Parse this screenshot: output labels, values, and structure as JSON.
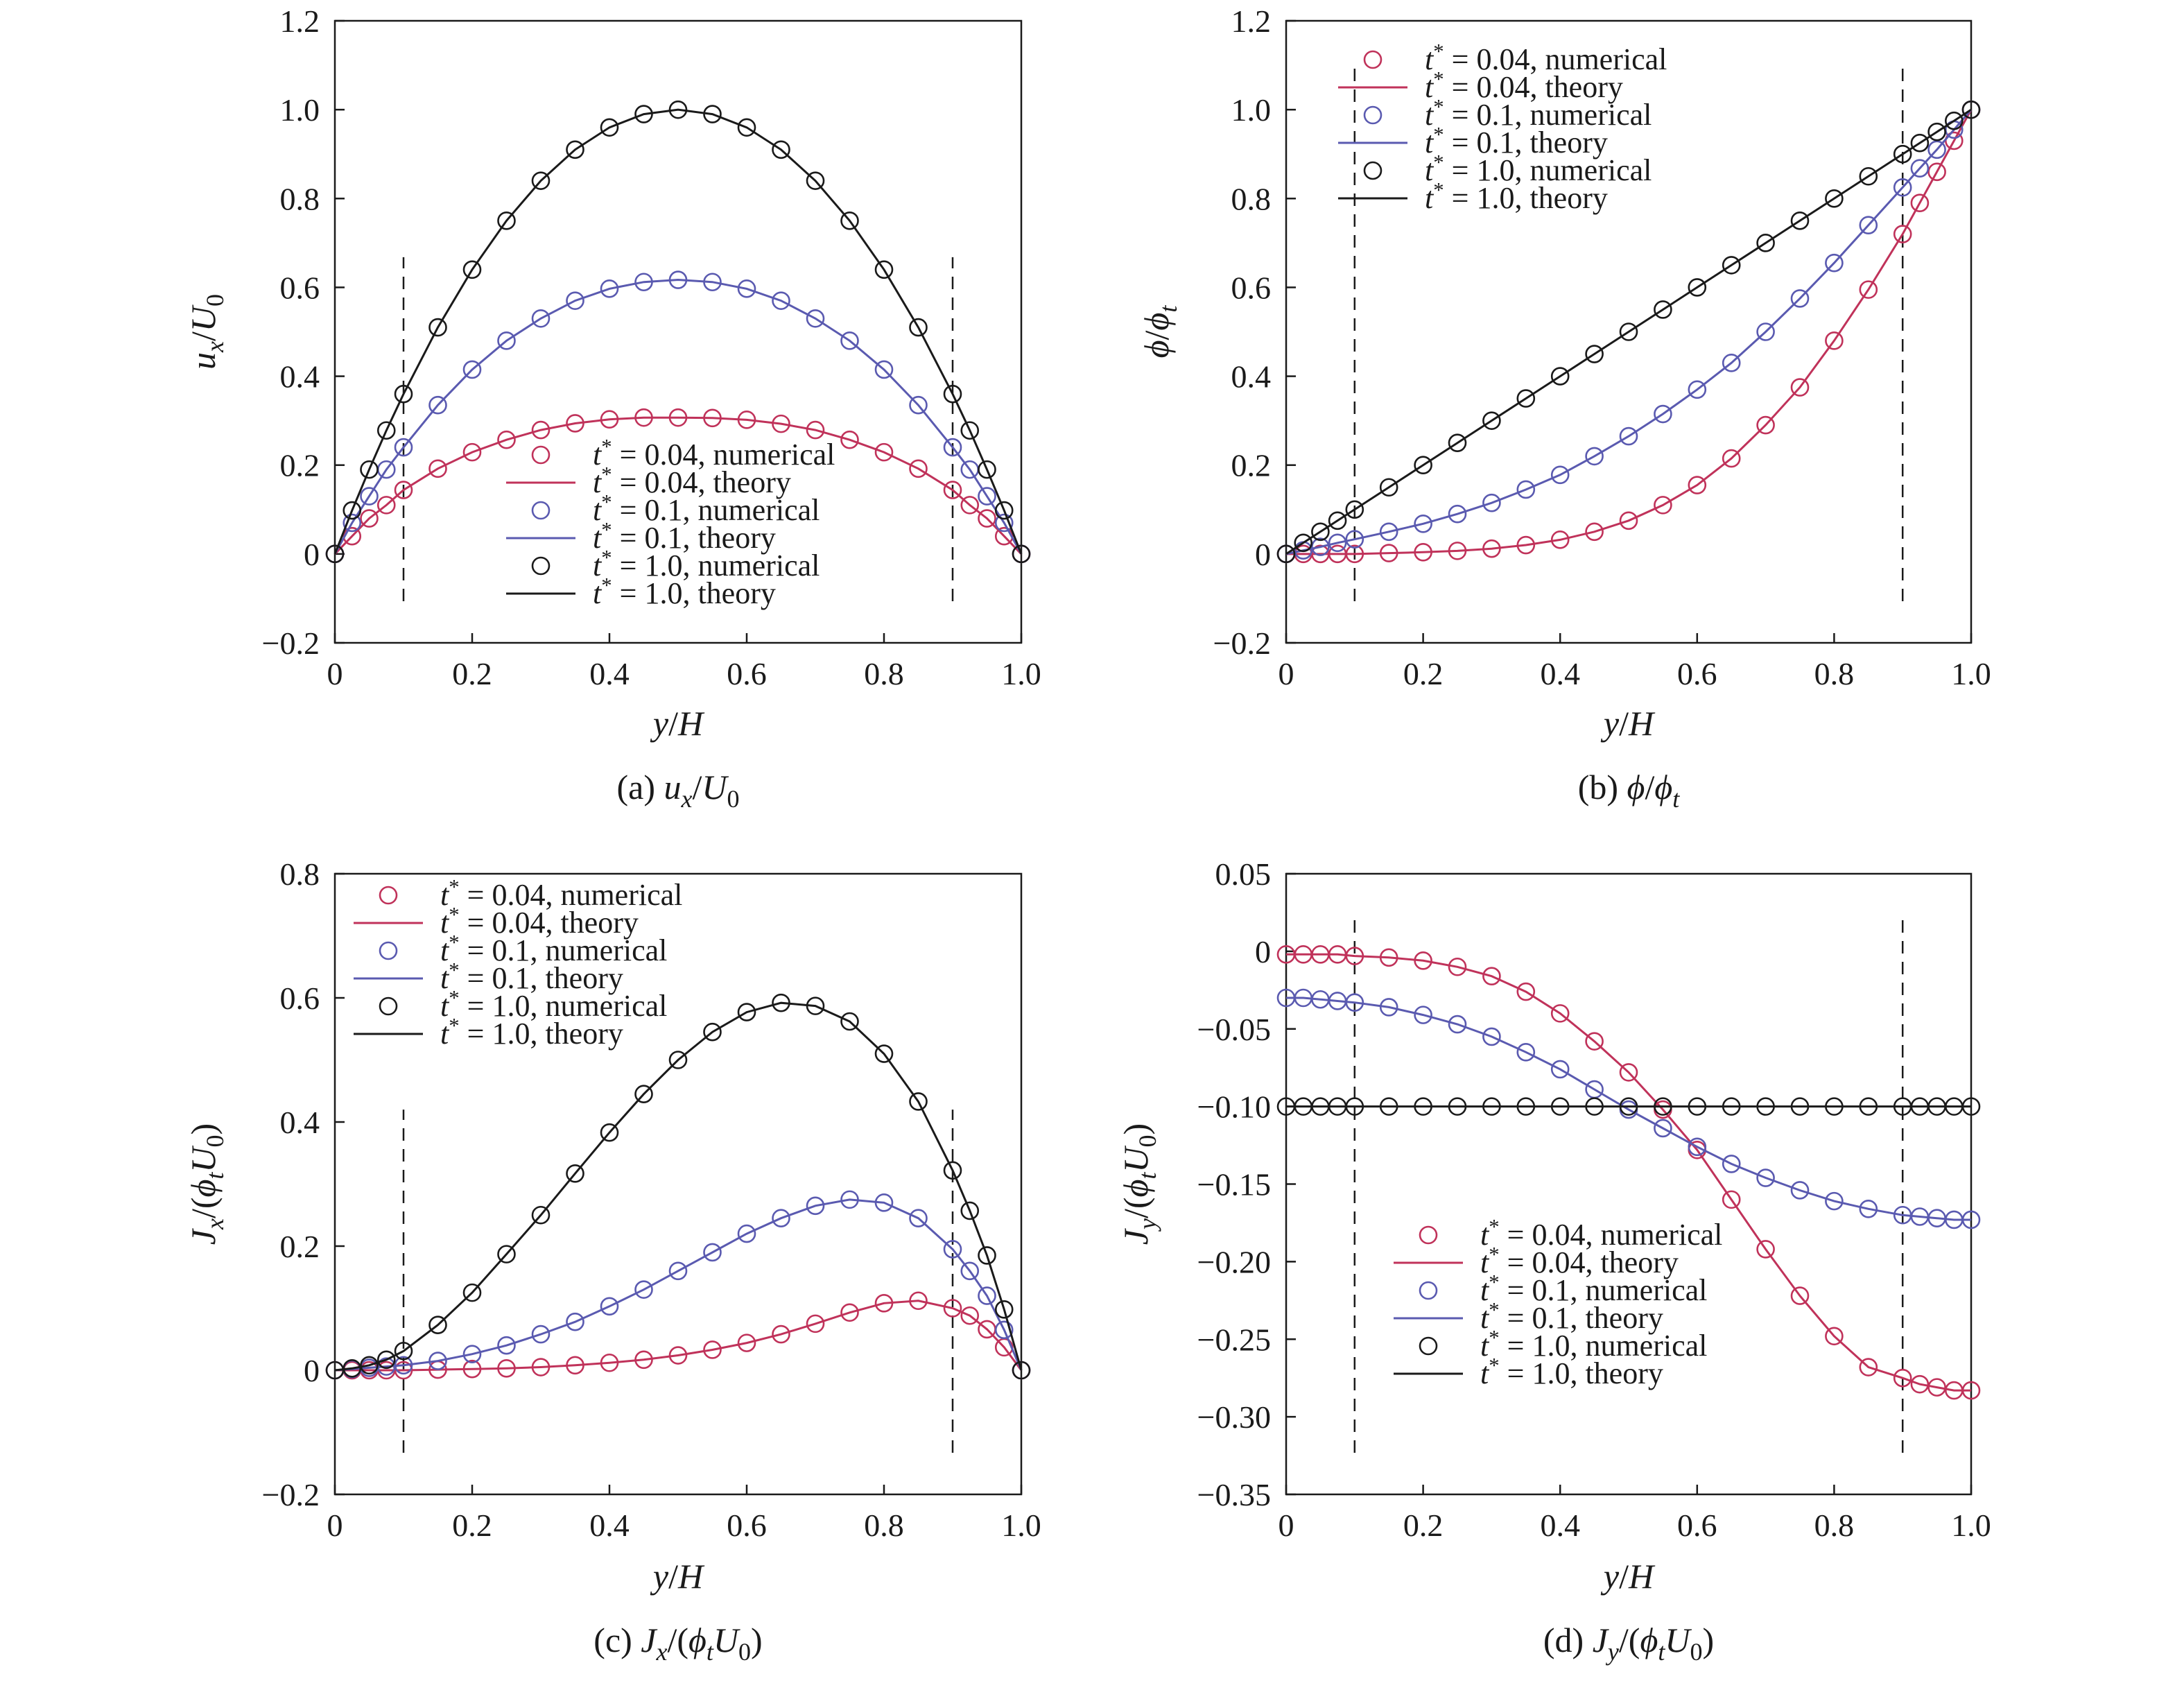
{
  "colors": {
    "t004": "#c0325a",
    "t01": "#5a5ab0",
    "t10": "#1a1a1a"
  },
  "legend_entries": [
    {
      "key": "t004",
      "kind": "marker",
      "pre": "t",
      "sup": "*",
      "post": " = 0.04, numerical"
    },
    {
      "key": "t004",
      "kind": "line",
      "pre": "t",
      "sup": "*",
      "post": " = 0.04, theory"
    },
    {
      "key": "t01",
      "kind": "marker",
      "pre": "t",
      "sup": "*",
      "post": " = 0.1, numerical"
    },
    {
      "key": "t01",
      "kind": "line",
      "pre": "t",
      "sup": "*",
      "post": " = 0.1, theory"
    },
    {
      "key": "t10",
      "kind": "marker",
      "pre": "t",
      "sup": "*",
      "post": " = 1.0, numerical"
    },
    {
      "key": "t10",
      "kind": "line",
      "pre": "t",
      "sup": "*",
      "post": " = 1.0, theory"
    }
  ],
  "chart_data": [
    {
      "id": "a",
      "type": "line",
      "caption": [
        {
          "t": "(a) "
        },
        {
          "t": "u",
          "i": true
        },
        {
          "t": "x",
          "i": true,
          "sub": true
        },
        {
          "t": "/"
        },
        {
          "t": "U",
          "i": true
        },
        {
          "t": "0",
          "sub": true
        }
      ],
      "ylabel": [
        {
          "t": "u",
          "i": true
        },
        {
          "t": "x",
          "i": true,
          "sub": true
        },
        {
          "t": "/"
        },
        {
          "t": "U",
          "i": true
        },
        {
          "t": "0",
          "sub": true
        }
      ],
      "xlabel": [
        {
          "t": "y",
          "i": true
        },
        {
          "t": "/"
        },
        {
          "t": "H",
          "i": true
        }
      ],
      "xlim": [
        0,
        1
      ],
      "ylim": [
        -0.2,
        1.2
      ],
      "xticks": [
        0,
        0.2,
        0.4,
        0.6,
        0.8,
        1.0
      ],
      "xtick_labels": [
        "0",
        "0.2",
        "0.4",
        "0.6",
        "0.8",
        "1.0"
      ],
      "yticks": [
        -0.2,
        0,
        0.2,
        0.4,
        0.6,
        0.8,
        1.0,
        1.2
      ],
      "ytick_labels": [
        "−0.2",
        "0",
        "0.2",
        "0.4",
        "0.6",
        "0.8",
        "1.0",
        "1.2"
      ],
      "dashed_x": [
        0.1,
        0.9
      ],
      "legend_position": "bottom-center",
      "x": [
        0,
        0.025,
        0.05,
        0.075,
        0.1,
        0.15,
        0.2,
        0.25,
        0.3,
        0.35,
        0.4,
        0.45,
        0.5,
        0.55,
        0.6,
        0.65,
        0.7,
        0.75,
        0.8,
        0.85,
        0.9,
        0.925,
        0.95,
        0.975,
        1.0
      ],
      "series": [
        {
          "key": "t004",
          "values": [
            0,
            0.04,
            0.08,
            0.11,
            0.144,
            0.192,
            0.229,
            0.257,
            0.279,
            0.294,
            0.303,
            0.307,
            0.307,
            0.306,
            0.302,
            0.293,
            0.279,
            0.257,
            0.229,
            0.192,
            0.144,
            0.11,
            0.08,
            0.04,
            0
          ]
        },
        {
          "key": "t01",
          "values": [
            0,
            0.07,
            0.13,
            0.19,
            0.24,
            0.335,
            0.415,
            0.48,
            0.53,
            0.57,
            0.597,
            0.612,
            0.617,
            0.612,
            0.597,
            0.57,
            0.53,
            0.48,
            0.415,
            0.335,
            0.24,
            0.19,
            0.13,
            0.07,
            0
          ]
        },
        {
          "key": "t10",
          "values": [
            0,
            0.098,
            0.19,
            0.278,
            0.36,
            0.51,
            0.64,
            0.75,
            0.84,
            0.91,
            0.96,
            0.99,
            1.0,
            0.99,
            0.96,
            0.91,
            0.84,
            0.75,
            0.64,
            0.51,
            0.36,
            0.278,
            0.19,
            0.098,
            0
          ]
        }
      ]
    },
    {
      "id": "b",
      "type": "line",
      "caption": [
        {
          "t": "(b) "
        },
        {
          "t": "ϕ",
          "i": true
        },
        {
          "t": "/"
        },
        {
          "t": "ϕ",
          "i": true
        },
        {
          "t": "t",
          "i": true,
          "sub": true
        }
      ],
      "ylabel": [
        {
          "t": "ϕ",
          "i": true
        },
        {
          "t": "/"
        },
        {
          "t": "ϕ",
          "i": true
        },
        {
          "t": "t",
          "i": true,
          "sub": true
        }
      ],
      "xlabel": [
        {
          "t": "y",
          "i": true
        },
        {
          "t": "/"
        },
        {
          "t": "H",
          "i": true
        }
      ],
      "xlim": [
        0,
        1
      ],
      "ylim": [
        -0.2,
        1.2
      ],
      "xticks": [
        0,
        0.2,
        0.4,
        0.6,
        0.8,
        1.0
      ],
      "xtick_labels": [
        "0",
        "0.2",
        "0.4",
        "0.6",
        "0.8",
        "1.0"
      ],
      "yticks": [
        -0.2,
        0,
        0.2,
        0.4,
        0.6,
        0.8,
        1.0,
        1.2
      ],
      "ytick_labels": [
        "−0.2",
        "0",
        "0.2",
        "0.4",
        "0.6",
        "0.8",
        "1.0",
        "1.2"
      ],
      "dashed_x": [
        0.1,
        0.9
      ],
      "legend_position": "top-left",
      "x": [
        0,
        0.025,
        0.05,
        0.075,
        0.1,
        0.15,
        0.2,
        0.25,
        0.3,
        0.35,
        0.4,
        0.45,
        0.5,
        0.55,
        0.6,
        0.65,
        0.7,
        0.75,
        0.8,
        0.85,
        0.9,
        0.925,
        0.95,
        0.975,
        1.0
      ],
      "series": [
        {
          "key": "t004",
          "values": [
            0,
            0,
            0,
            0,
            0,
            0.002,
            0.004,
            0.007,
            0.012,
            0.02,
            0.032,
            0.05,
            0.075,
            0.11,
            0.155,
            0.215,
            0.29,
            0.375,
            0.48,
            0.595,
            0.72,
            0.79,
            0.86,
            0.93,
            1.0
          ]
        },
        {
          "key": "t01",
          "values": [
            0,
            0.008,
            0.016,
            0.025,
            0.033,
            0.05,
            0.068,
            0.09,
            0.115,
            0.145,
            0.178,
            0.22,
            0.265,
            0.315,
            0.37,
            0.43,
            0.5,
            0.575,
            0.655,
            0.74,
            0.825,
            0.868,
            0.91,
            0.955,
            1.0
          ]
        },
        {
          "key": "t10",
          "values": [
            0,
            0.025,
            0.05,
            0.075,
            0.1,
            0.15,
            0.2,
            0.25,
            0.3,
            0.35,
            0.4,
            0.45,
            0.5,
            0.55,
            0.6,
            0.65,
            0.7,
            0.75,
            0.8,
            0.85,
            0.9,
            0.925,
            0.95,
            0.975,
            1.0
          ]
        }
      ]
    },
    {
      "id": "c",
      "type": "line",
      "caption": [
        {
          "t": "(c) "
        },
        {
          "t": "J",
          "i": true
        },
        {
          "t": "x",
          "i": true,
          "sub": true
        },
        {
          "t": "/("
        },
        {
          "t": "ϕ",
          "i": true
        },
        {
          "t": "t",
          "i": true,
          "sub": true
        },
        {
          "t": "U",
          "i": true
        },
        {
          "t": "0",
          "sub": true
        },
        {
          "t": ")"
        }
      ],
      "ylabel": [
        {
          "t": "J",
          "i": true
        },
        {
          "t": "x",
          "i": true,
          "sub": true
        },
        {
          "t": "/("
        },
        {
          "t": "ϕ",
          "i": true
        },
        {
          "t": "t",
          "i": true,
          "sub": true
        },
        {
          "t": "U",
          "i": true
        },
        {
          "t": "0",
          "sub": true
        },
        {
          "t": ")"
        }
      ],
      "xlabel": [
        {
          "t": "y",
          "i": true
        },
        {
          "t": "/"
        },
        {
          "t": "H",
          "i": true
        }
      ],
      "xlim": [
        0,
        1
      ],
      "ylim": [
        -0.2,
        0.8
      ],
      "xticks": [
        0,
        0.2,
        0.4,
        0.6,
        0.8,
        1.0
      ],
      "xtick_labels": [
        "0",
        "0.2",
        "0.4",
        "0.6",
        "0.8",
        "1.0"
      ],
      "yticks": [
        -0.2,
        0,
        0.2,
        0.4,
        0.6,
        0.8
      ],
      "ytick_labels": [
        "−0.2",
        "0",
        "0.2",
        "0.4",
        "0.6",
        "0.8"
      ],
      "dashed_x": [
        0.1,
        0.9
      ],
      "legend_position": "top-left",
      "x": [
        0,
        0.025,
        0.05,
        0.075,
        0.1,
        0.15,
        0.2,
        0.25,
        0.3,
        0.35,
        0.4,
        0.45,
        0.5,
        0.55,
        0.6,
        0.65,
        0.7,
        0.75,
        0.8,
        0.85,
        0.9,
        0.925,
        0.95,
        0.975,
        1.0
      ],
      "series": [
        {
          "key": "t004",
          "values": [
            0,
            0,
            0,
            0,
            0,
            0.001,
            0.002,
            0.003,
            0.005,
            0.008,
            0.012,
            0.017,
            0.024,
            0.033,
            0.044,
            0.058,
            0.075,
            0.093,
            0.108,
            0.112,
            0.1,
            0.088,
            0.066,
            0.037,
            0
          ]
        },
        {
          "key": "t01",
          "values": [
            0,
            0.002,
            0.004,
            0.006,
            0.008,
            0.015,
            0.026,
            0.04,
            0.058,
            0.078,
            0.103,
            0.13,
            0.16,
            0.19,
            0.22,
            0.245,
            0.265,
            0.275,
            0.27,
            0.245,
            0.195,
            0.16,
            0.12,
            0.065,
            0
          ]
        },
        {
          "key": "t10",
          "values": [
            0,
            0.003,
            0.008,
            0.017,
            0.031,
            0.073,
            0.125,
            0.187,
            0.25,
            0.317,
            0.383,
            0.445,
            0.5,
            0.545,
            0.577,
            0.592,
            0.587,
            0.562,
            0.51,
            0.433,
            0.322,
            0.257,
            0.185,
            0.098,
            0
          ]
        }
      ]
    },
    {
      "id": "d",
      "type": "line",
      "caption": [
        {
          "t": "(d) "
        },
        {
          "t": "J",
          "i": true
        },
        {
          "t": "y",
          "i": true,
          "sub": true
        },
        {
          "t": "/("
        },
        {
          "t": "ϕ",
          "i": true
        },
        {
          "t": "t",
          "i": true,
          "sub": true
        },
        {
          "t": "U",
          "i": true
        },
        {
          "t": "0",
          "sub": true
        },
        {
          "t": ")"
        }
      ],
      "ylabel": [
        {
          "t": "J",
          "i": true
        },
        {
          "t": "y",
          "i": true,
          "sub": true
        },
        {
          "t": "/("
        },
        {
          "t": "ϕ",
          "i": true
        },
        {
          "t": "t",
          "i": true,
          "sub": true
        },
        {
          "t": "U",
          "i": true
        },
        {
          "t": "0",
          "sub": true
        },
        {
          "t": ")"
        }
      ],
      "xlabel": [
        {
          "t": "y",
          "i": true
        },
        {
          "t": "/"
        },
        {
          "t": "H",
          "i": true
        }
      ],
      "xlim": [
        0,
        1
      ],
      "ylim": [
        -0.35,
        0.05
      ],
      "xticks": [
        0,
        0.2,
        0.4,
        0.6,
        0.8,
        1.0
      ],
      "xtick_labels": [
        "0",
        "0.2",
        "0.4",
        "0.6",
        "0.8",
        "1.0"
      ],
      "yticks": [
        -0.35,
        -0.3,
        -0.25,
        -0.2,
        -0.15,
        -0.1,
        -0.05,
        0,
        0.05
      ],
      "ytick_labels": [
        "−0.35",
        "−0.30",
        "−0.25",
        "−0.20",
        "−0.15",
        "−0.10",
        "−0.05",
        "0",
        "0.05"
      ],
      "dashed_x": [
        0.1,
        0.9
      ],
      "legend_position": "bottom-center",
      "x": [
        0,
        0.025,
        0.05,
        0.075,
        0.1,
        0.15,
        0.2,
        0.25,
        0.3,
        0.35,
        0.4,
        0.45,
        0.5,
        0.55,
        0.6,
        0.65,
        0.7,
        0.75,
        0.8,
        0.85,
        0.9,
        0.925,
        0.95,
        0.975,
        1.0
      ],
      "series": [
        {
          "key": "t004",
          "values": [
            -0.002,
            -0.002,
            -0.002,
            -0.002,
            -0.003,
            -0.004,
            -0.006,
            -0.01,
            -0.016,
            -0.026,
            -0.04,
            -0.058,
            -0.078,
            -0.102,
            -0.128,
            -0.16,
            -0.192,
            -0.222,
            -0.248,
            -0.268,
            -0.275,
            -0.279,
            -0.281,
            -0.283,
            -0.283
          ]
        },
        {
          "key": "t01",
          "values": [
            -0.03,
            -0.03,
            -0.031,
            -0.032,
            -0.033,
            -0.036,
            -0.041,
            -0.047,
            -0.055,
            -0.065,
            -0.076,
            -0.089,
            -0.102,
            -0.114,
            -0.126,
            -0.137,
            -0.146,
            -0.154,
            -0.161,
            -0.166,
            -0.17,
            -0.171,
            -0.172,
            -0.173,
            -0.173
          ]
        },
        {
          "key": "t10",
          "values": [
            -0.1,
            -0.1,
            -0.1,
            -0.1,
            -0.1,
            -0.1,
            -0.1,
            -0.1,
            -0.1,
            -0.1,
            -0.1,
            -0.1,
            -0.1,
            -0.1,
            -0.1,
            -0.1,
            -0.1,
            -0.1,
            -0.1,
            -0.1,
            -0.1,
            -0.1,
            -0.1,
            -0.1,
            -0.1
          ]
        }
      ]
    }
  ]
}
